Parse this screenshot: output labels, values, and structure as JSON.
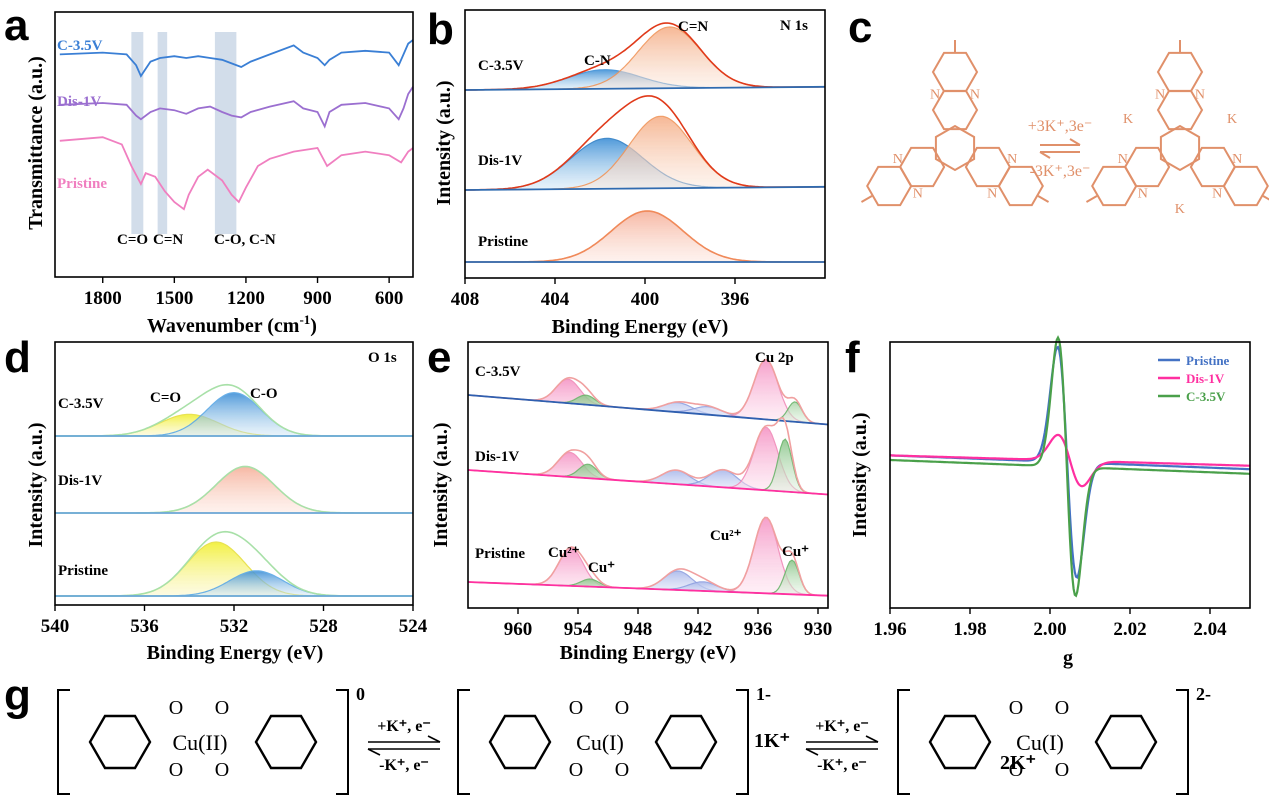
{
  "panels": {
    "a": {
      "label": "a",
      "xlabel": "Wavenumber (cm",
      "xlabel_sup": "-1",
      "xlabel_tail": ")",
      "ylabel": "Transmittance (a.u.)",
      "bands": [
        "C=O",
        "C=N",
        "C-O, C-N"
      ]
    },
    "b": {
      "label": "b",
      "core": "N 1s",
      "peaks": [
        "C-N",
        "C=N"
      ],
      "ylabel": "Intensity (a.u.)",
      "xlabel": "Binding Energy (eV)"
    },
    "c": {
      "label": "c",
      "forward": "+3K⁺,3e⁻",
      "backward": "-3K⁺,3e⁻",
      "atom_n": "N",
      "atom_k": "K"
    },
    "d": {
      "label": "d",
      "core": "O 1s",
      "peaks": [
        "C=O",
        "C-O"
      ],
      "ylabel": "Intensity (a.u.)",
      "xlabel": "Binding Energy (eV)"
    },
    "e": {
      "label": "e",
      "core": "Cu 2p",
      "peaks": [
        "Cu²⁺",
        "Cu⁺",
        "Cu²⁺",
        "Cu⁺"
      ],
      "ylabel": "Intensity (a.u.)",
      "xlabel": "Binding Energy (eV)"
    },
    "f": {
      "label": "f",
      "ylabel": "Intensity (a.u.)",
      "xlabel": "g"
    },
    "g": {
      "label": "g",
      "charges": [
        "0",
        "1-",
        "2-"
      ],
      "metals": [
        "Cu(II)",
        "Cu(I)",
        "Cu(I)"
      ],
      "counterions": [
        "1K⁺",
        "2K⁺"
      ],
      "forward": "+K⁺, e⁻",
      "backward": "-K⁺, e⁻",
      "atom_o": "O"
    }
  },
  "chart_data": [
    {
      "panel": "a",
      "type": "line",
      "xlim": [
        2000,
        500
      ],
      "xticks": [
        1800,
        1500,
        1200,
        900,
        600
      ],
      "series": [
        {
          "name": "C-3.5V",
          "color": "#3a7fd5",
          "x": [
            1980,
            1800,
            1700,
            1660,
            1640,
            1600,
            1560,
            1500,
            1450,
            1400,
            1350,
            1300,
            1260,
            1220,
            1180,
            1100,
            1000,
            960,
            900,
            870,
            850,
            800,
            700,
            600,
            560,
            540,
            520,
            500
          ],
          "y": [
            92,
            93,
            92,
            86,
            80,
            88,
            90,
            91,
            90,
            91,
            90,
            89,
            87,
            85,
            88,
            92,
            97,
            93,
            90,
            86,
            89,
            93,
            94,
            93,
            86,
            92,
            98,
            100
          ]
        },
        {
          "name": "Dis-1V",
          "color": "#9b6fd0",
          "x": [
            1980,
            1800,
            1700,
            1660,
            1640,
            1600,
            1560,
            1500,
            1450,
            1400,
            1350,
            1300,
            1260,
            1220,
            1180,
            1100,
            1000,
            960,
            900,
            870,
            850,
            800,
            700,
            600,
            560,
            540,
            520,
            500
          ],
          "y": [
            64,
            65,
            64,
            58,
            56,
            60,
            62,
            61,
            59,
            62,
            63,
            60,
            58,
            57,
            60,
            63,
            66,
            62,
            60,
            52,
            60,
            64,
            65,
            62,
            56,
            62,
            70,
            74
          ]
        },
        {
          "name": "Pristine",
          "color": "#f07fc0",
          "x": [
            1980,
            1800,
            1720,
            1680,
            1640,
            1620,
            1580,
            1540,
            1500,
            1460,
            1440,
            1400,
            1360,
            1300,
            1260,
            1230,
            1200,
            1150,
            1100,
            1000,
            900,
            860,
            800,
            700,
            600,
            550,
            520,
            500
          ],
          "y": [
            44,
            46,
            42,
            30,
            20,
            26,
            24,
            16,
            10,
            6,
            14,
            24,
            28,
            22,
            14,
            10,
            18,
            30,
            34,
            38,
            40,
            30,
            36,
            38,
            36,
            32,
            38,
            40
          ]
        }
      ]
    },
    {
      "panel": "b",
      "type": "area",
      "xlim": [
        408,
        392
      ],
      "xticks": [
        408,
        404,
        400,
        396
      ],
      "series": [
        {
          "name": "C-3.5V",
          "peaks": [
            {
              "label": "C-N",
              "center": 401.8,
              "height": 0.28
            },
            {
              "label": "C=N",
              "center": 398.9,
              "height": 0.9
            }
          ]
        },
        {
          "name": "Dis-1V",
          "peaks": [
            {
              "label": "C-N",
              "center": 401.7,
              "height": 0.56
            },
            {
              "label": "C=N",
              "center": 399.3,
              "height": 0.8
            }
          ]
        },
        {
          "name": "Pristine",
          "peaks": [
            {
              "label": "",
              "center": 399.9,
              "height": 0.75
            }
          ]
        }
      ]
    },
    {
      "panel": "d",
      "type": "area",
      "xlim": [
        540,
        524
      ],
      "xticks": [
        540,
        536,
        532,
        528,
        524
      ],
      "series": [
        {
          "name": "C-3.5V",
          "peaks": [
            {
              "label": "C=O",
              "center": 534.0,
              "height": 0.35
            },
            {
              "label": "C-O",
              "center": 532.0,
              "height": 0.7
            }
          ]
        },
        {
          "name": "Dis-1V",
          "peaks": [
            {
              "label": "",
              "center": 531.5,
              "height": 0.75
            }
          ]
        },
        {
          "name": "Pristine",
          "peaks": [
            {
              "label": "",
              "center": 532.8,
              "height": 0.75
            },
            {
              "label": "",
              "center": 531.0,
              "height": 0.35
            }
          ]
        }
      ]
    },
    {
      "panel": "e",
      "type": "area",
      "xlim": [
        965,
        929
      ],
      "xticks": [
        960,
        954,
        948,
        942,
        936,
        930
      ],
      "series": [
        {
          "name": "C-3.5V",
          "peaks": [
            {
              "label": "",
              "center": 955.0,
              "height": 0.3
            },
            {
              "label": "",
              "center": 953.2,
              "height": 0.12
            },
            {
              "label": "",
              "center": 944.0,
              "height": 0.12
            },
            {
              "label": "",
              "center": 941.0,
              "height": 0.1
            },
            {
              "label": "",
              "center": 935.2,
              "height": 0.75
            },
            {
              "label": "",
              "center": 932.3,
              "height": 0.25
            }
          ]
        },
        {
          "name": "Dis-1V",
          "peaks": [
            {
              "label": "",
              "center": 954.8,
              "height": 0.35
            },
            {
              "label": "",
              "center": 953.0,
              "height": 0.2
            },
            {
              "label": "",
              "center": 944.2,
              "height": 0.2
            },
            {
              "label": "",
              "center": 939.5,
              "height": 0.25
            },
            {
              "label": "",
              "center": 935.2,
              "height": 0.9
            },
            {
              "label": "",
              "center": 933.3,
              "height": 0.75
            }
          ]
        },
        {
          "name": "Pristine",
          "peaks": [
            {
              "label": "Cu²⁺",
              "center": 954.7,
              "height": 0.5
            },
            {
              "label": "Cu⁺",
              "center": 952.8,
              "height": 0.1
            },
            {
              "label": "",
              "center": 944.0,
              "height": 0.25
            },
            {
              "label": "",
              "center": 941.5,
              "height": 0.12
            },
            {
              "label": "Cu²⁺",
              "center": 935.2,
              "height": 1.0
            },
            {
              "label": "Cu⁺",
              "center": 932.6,
              "height": 0.45
            }
          ]
        }
      ]
    },
    {
      "panel": "f",
      "type": "line",
      "xlim": [
        1.96,
        2.05
      ],
      "xticks": [
        1.96,
        1.98,
        2.0,
        2.02,
        2.04
      ],
      "xtick_labels": [
        "1.96",
        "1.98",
        "2.00",
        "2.02",
        "2.04"
      ],
      "legend_position": "top-right",
      "series": [
        {
          "name": "Pristine",
          "color": "#4472c4",
          "center": 2.0043,
          "amplitude": 1.0,
          "width": 0.0024,
          "baseline_start": 0.04,
          "baseline_end": -0.08
        },
        {
          "name": "Dis-1V",
          "color": "#ff2fa0",
          "center": 2.005,
          "amplitude": 0.22,
          "width": 0.003,
          "baseline_start": 0.04,
          "baseline_end": -0.05
        },
        {
          "name": "C-3.5V",
          "color": "#4aa04a",
          "center": 2.0042,
          "amplitude": 1.12,
          "width": 0.0022,
          "baseline_start": 0.0,
          "baseline_end": -0.12
        }
      ]
    }
  ],
  "colors": {
    "accent_orange": "#e0906a",
    "band_fill": "#b4c6dc"
  }
}
